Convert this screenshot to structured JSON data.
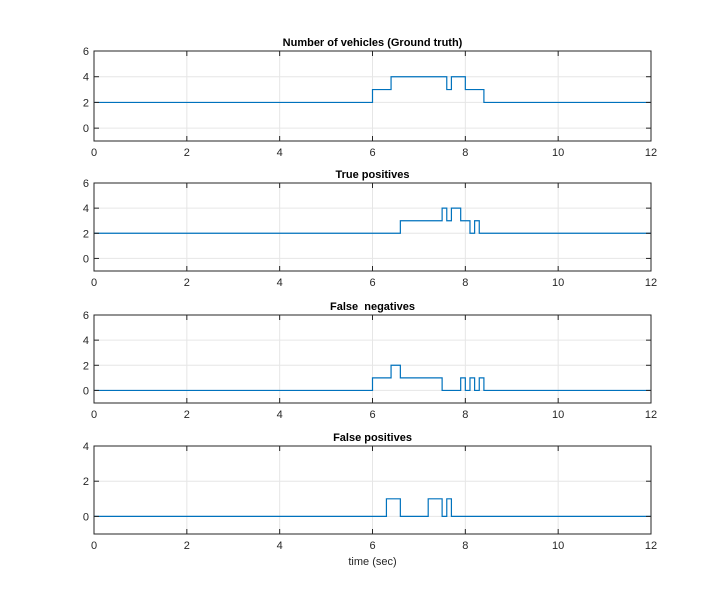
{
  "chart_data": [
    {
      "type": "line",
      "step": true,
      "title": "Number of vehicles (Ground truth)",
      "xlabel": "",
      "xlim": [
        0,
        12
      ],
      "ylim": [
        -1,
        6
      ],
      "xticks": [
        0,
        2,
        4,
        6,
        8,
        10,
        12
      ],
      "yticks": [
        0,
        2,
        4,
        6
      ],
      "grid": true,
      "color": "#0072BD",
      "x": [
        0,
        6.0,
        6.4,
        7.6,
        7.7,
        8.0,
        8.4,
        12
      ],
      "y": [
        2,
        3,
        4,
        3,
        4,
        3,
        2,
        2
      ]
    },
    {
      "type": "line",
      "step": true,
      "title": "True positives",
      "xlabel": "",
      "xlim": [
        0,
        12
      ],
      "ylim": [
        -1,
        6
      ],
      "xticks": [
        0,
        2,
        4,
        6,
        8,
        10,
        12
      ],
      "yticks": [
        0,
        2,
        4,
        6
      ],
      "grid": true,
      "color": "#0072BD",
      "x": [
        0,
        6.6,
        7.5,
        7.6,
        7.7,
        7.9,
        8.1,
        8.2,
        8.3,
        12
      ],
      "y": [
        2,
        3,
        4,
        3,
        4,
        3,
        2,
        3,
        2,
        2
      ]
    },
    {
      "type": "line",
      "step": true,
      "title": "False  negatives",
      "xlabel": "",
      "xlim": [
        0,
        12
      ],
      "ylim": [
        -1,
        6
      ],
      "xticks": [
        0,
        2,
        4,
        6,
        8,
        10,
        12
      ],
      "yticks": [
        0,
        2,
        4,
        6
      ],
      "grid": true,
      "color": "#0072BD",
      "x": [
        0,
        6.0,
        6.4,
        6.6,
        7.5,
        7.9,
        8.0,
        8.1,
        8.2,
        8.3,
        8.4,
        12
      ],
      "y": [
        0,
        1,
        2,
        1,
        0,
        1,
        0,
        1,
        0,
        1,
        0,
        0
      ]
    },
    {
      "type": "line",
      "step": true,
      "title": "False positives",
      "xlabel": "time (sec)",
      "xlim": [
        0,
        12
      ],
      "ylim": [
        -1,
        4
      ],
      "xticks": [
        0,
        2,
        4,
        6,
        8,
        10,
        12
      ],
      "yticks": [
        0,
        2,
        4
      ],
      "grid": true,
      "color": "#0072BD",
      "x": [
        0,
        6.3,
        6.6,
        7.2,
        7.5,
        7.6,
        7.7,
        12
      ],
      "y": [
        0,
        1,
        0,
        1,
        0,
        1,
        0,
        0
      ]
    }
  ]
}
